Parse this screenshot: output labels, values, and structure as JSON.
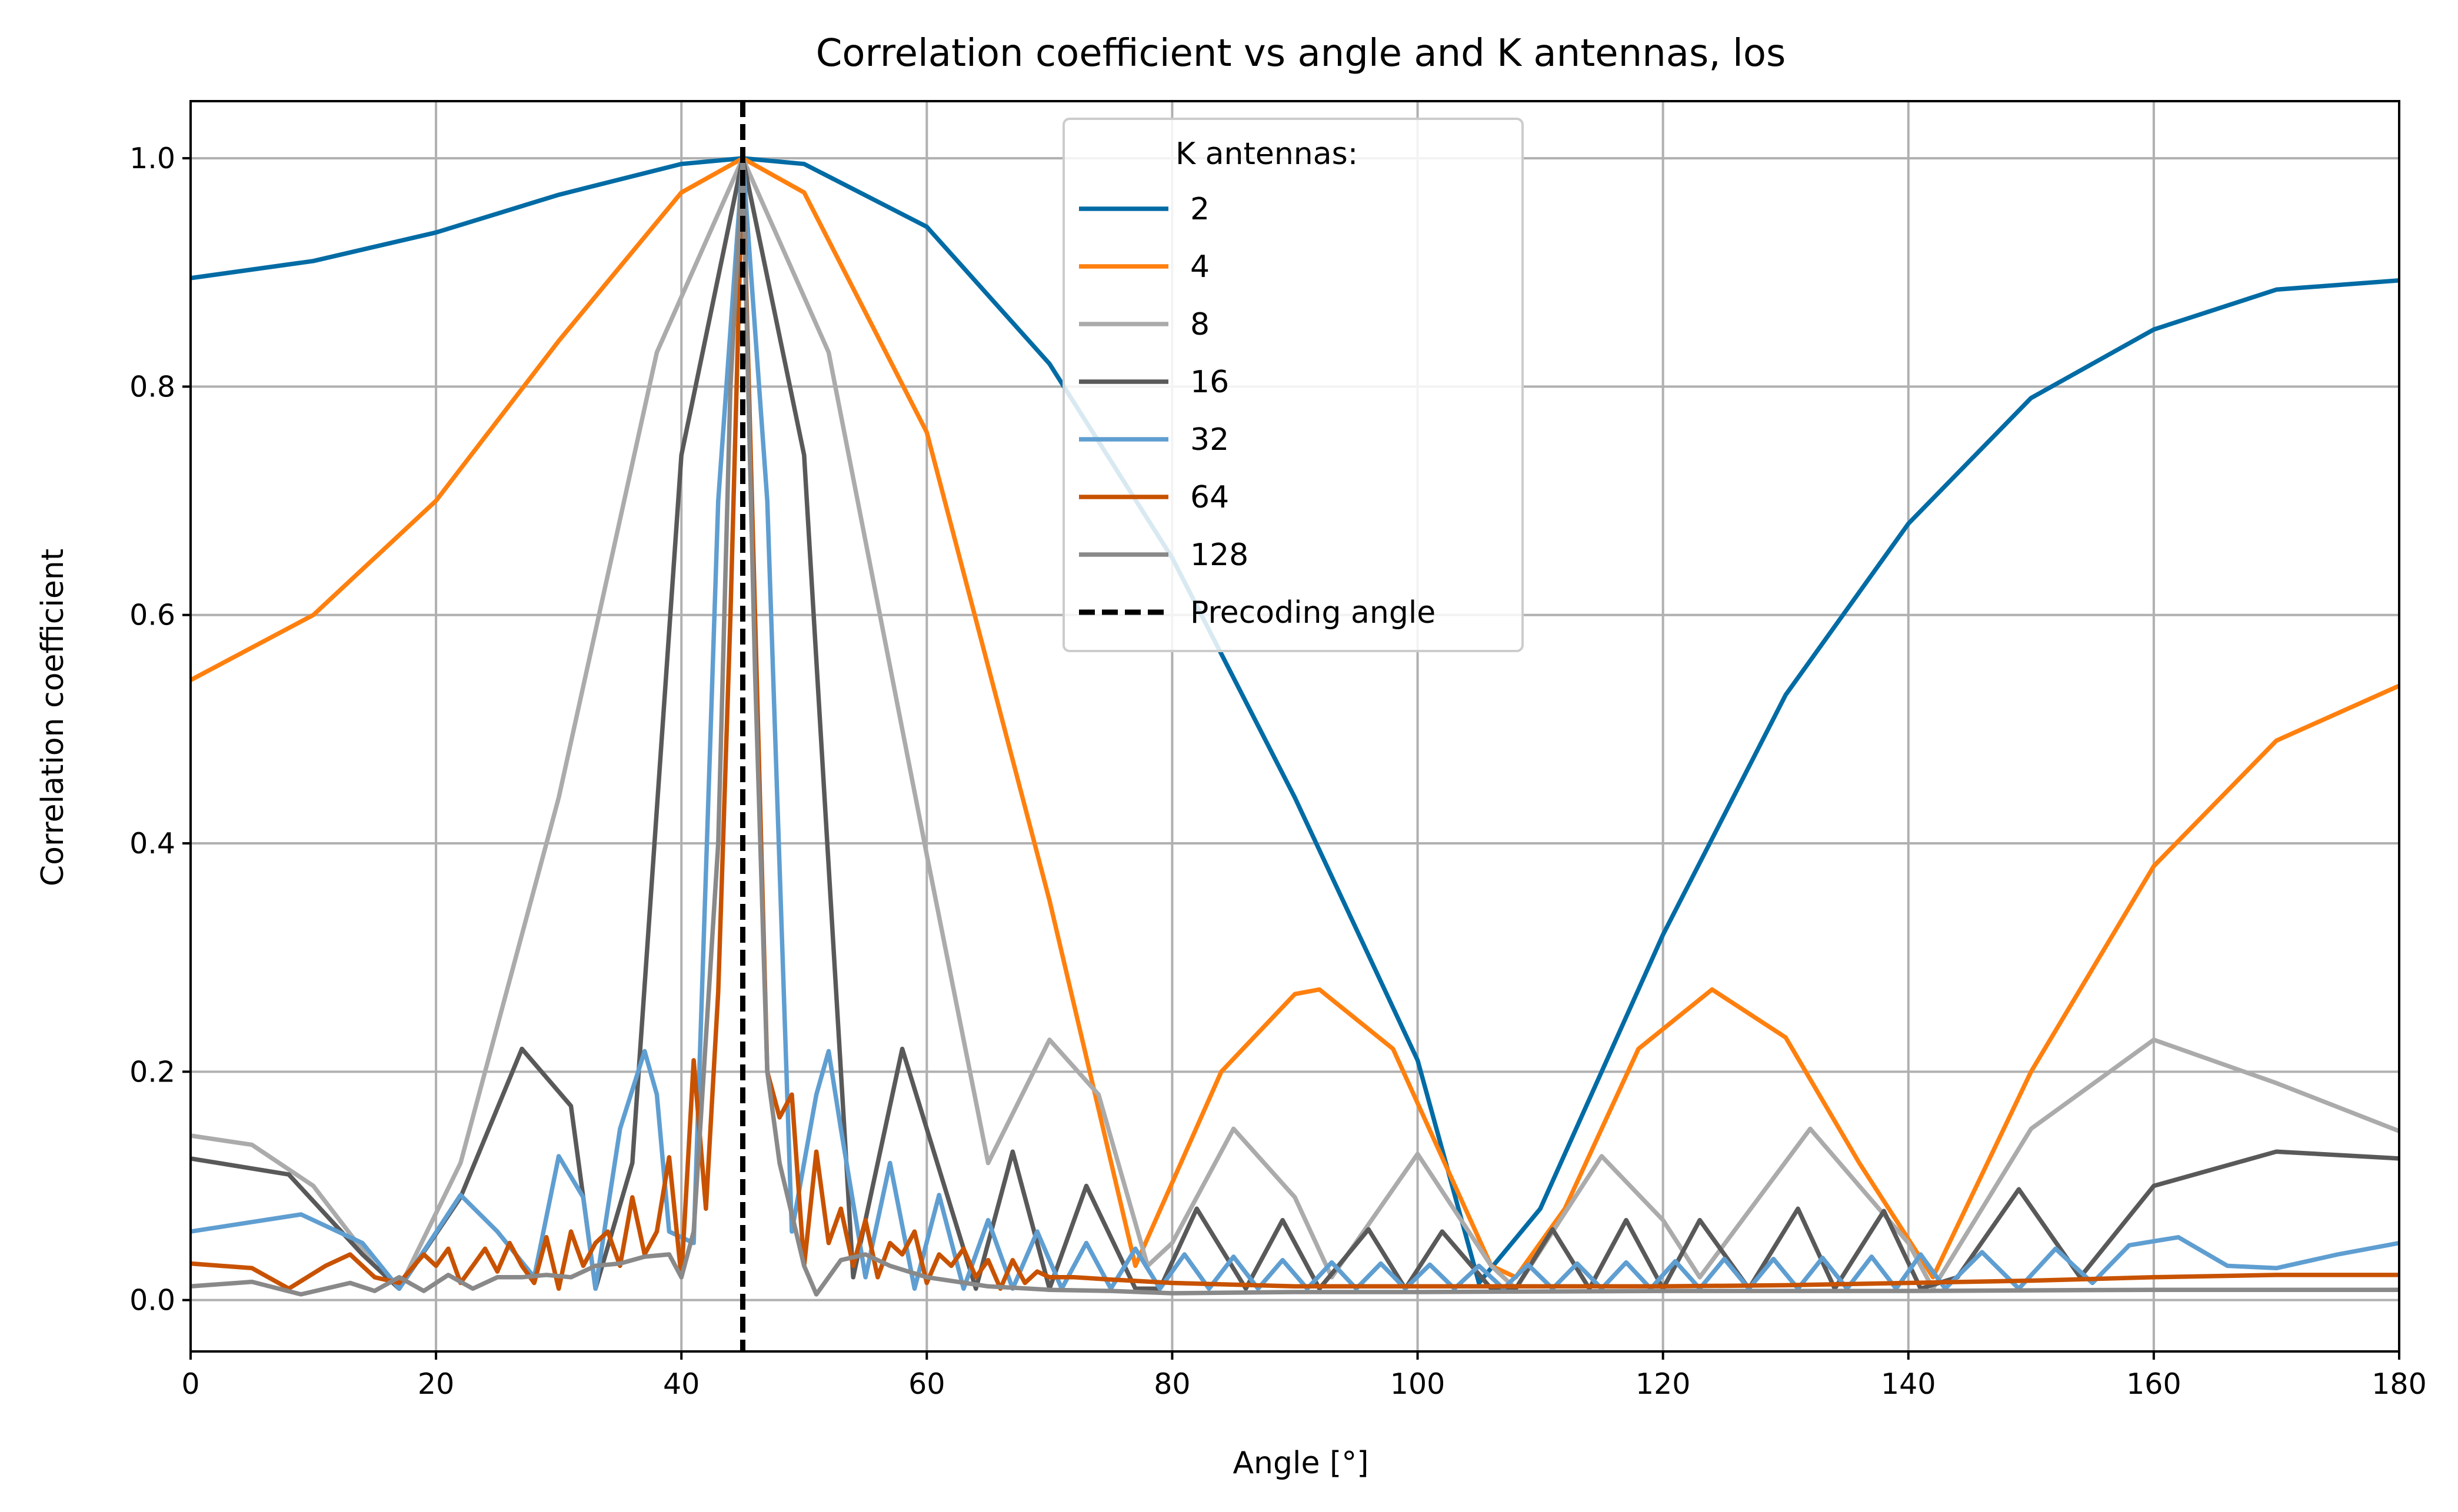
{
  "chart_data": {
    "type": "line",
    "title": "Correlation coefficient vs angle and K antennas, los",
    "xlabel": "Angle [°]",
    "ylabel": "Correlation coefficient",
    "xlim": [
      0,
      180
    ],
    "ylim": [
      -0.045,
      1.05
    ],
    "xticks": [
      0,
      20,
      40,
      60,
      80,
      100,
      120,
      140,
      160,
      180
    ],
    "yticks": [
      0.0,
      0.2,
      0.4,
      0.6,
      0.8,
      1.0
    ],
    "xtick_labels": [
      "0",
      "20",
      "40",
      "60",
      "80",
      "100",
      "120",
      "140",
      "160",
      "180"
    ],
    "ytick_labels": [
      "0.0",
      "0.2",
      "0.4",
      "0.6",
      "0.8",
      "1.0"
    ],
    "grid": true,
    "legend": {
      "title": "K antennas:",
      "placement": "top-center",
      "entries": [
        "2",
        "4",
        "8",
        "16",
        "32",
        "64",
        "128",
        "Precoding angle"
      ]
    },
    "precoding_angle": 45,
    "series": [
      {
        "name": "2",
        "color": "#006ba4",
        "x": [
          0,
          10,
          20,
          30,
          40,
          45,
          50,
          60,
          70,
          80,
          90,
          100,
          105,
          110,
          120,
          130,
          140,
          150,
          160,
          170,
          180
        ],
        "y": [
          0.895,
          0.91,
          0.935,
          0.968,
          0.995,
          1.0,
          0.995,
          0.94,
          0.82,
          0.65,
          0.44,
          0.21,
          0.015,
          0.08,
          0.32,
          0.53,
          0.68,
          0.79,
          0.85,
          0.885,
          0.893
        ]
      },
      {
        "name": "4",
        "color": "#ff800e",
        "x": [
          0,
          10,
          20,
          30,
          40,
          45,
          50,
          60,
          70,
          77,
          84,
          90,
          92,
          98,
          106,
          108,
          112,
          118,
          124,
          130,
          136,
          142,
          150,
          160,
          170,
          180
        ],
        "y": [
          0.543,
          0.6,
          0.7,
          0.84,
          0.97,
          1.0,
          0.97,
          0.76,
          0.35,
          0.03,
          0.2,
          0.268,
          0.272,
          0.22,
          0.03,
          0.02,
          0.08,
          0.22,
          0.272,
          0.23,
          0.12,
          0.02,
          0.2,
          0.38,
          0.49,
          0.538
        ]
      },
      {
        "name": "8",
        "color": "#ababab",
        "x": [
          0,
          5,
          10,
          15,
          17,
          22,
          30,
          38,
          45,
          52,
          60,
          65,
          70,
          74,
          78,
          80,
          85,
          90,
          93,
          100,
          106,
          108,
          115,
          120,
          123,
          132,
          140,
          142,
          150,
          160,
          170,
          180
        ],
        "y": [
          0.144,
          0.136,
          0.1,
          0.03,
          0.01,
          0.12,
          0.44,
          0.83,
          1.0,
          0.83,
          0.39,
          0.12,
          0.228,
          0.18,
          0.03,
          0.05,
          0.15,
          0.09,
          0.02,
          0.128,
          0.03,
          0.01,
          0.126,
          0.07,
          0.02,
          0.15,
          0.05,
          0.01,
          0.15,
          0.228,
          0.19,
          0.148
        ]
      },
      {
        "name": "16",
        "color": "#595959",
        "x": [
          0,
          8,
          14,
          17,
          22,
          27,
          31,
          33,
          36,
          40,
          45,
          50,
          54,
          58,
          62,
          64,
          67,
          70,
          73,
          77,
          79,
          82,
          86,
          89,
          92,
          96,
          99,
          102,
          106,
          108,
          111,
          114,
          117,
          120,
          123,
          127,
          131,
          134,
          138,
          141,
          144,
          149,
          154,
          160,
          170,
          180
        ],
        "y": [
          0.124,
          0.11,
          0.04,
          0.01,
          0.09,
          0.22,
          0.17,
          0.01,
          0.12,
          0.74,
          1.0,
          0.74,
          0.02,
          0.22,
          0.08,
          0.01,
          0.13,
          0.01,
          0.1,
          0.01,
          0.01,
          0.08,
          0.01,
          0.07,
          0.01,
          0.062,
          0.01,
          0.06,
          0.01,
          0.01,
          0.062,
          0.01,
          0.07,
          0.01,
          0.07,
          0.01,
          0.08,
          0.01,
          0.078,
          0.01,
          0.02,
          0.097,
          0.02,
          0.1,
          0.13,
          0.124
        ]
      },
      {
        "name": "32",
        "color": "#5f9ed1",
        "x": [
          0,
          9,
          14,
          17,
          22,
          25,
          28,
          30,
          32,
          33,
          35,
          37,
          38,
          39,
          41,
          43,
          45,
          47,
          49,
          51,
          52,
          53,
          55,
          57,
          59,
          61,
          63,
          65,
          67,
          69,
          71,
          73,
          75,
          77,
          79,
          81,
          83,
          85,
          87,
          89,
          91,
          93,
          95,
          97,
          99,
          101,
          103,
          105,
          107,
          109,
          111,
          113,
          115,
          117,
          119,
          121,
          123,
          125,
          127,
          129,
          131,
          133,
          135,
          137,
          139,
          141,
          143,
          146,
          149,
          152,
          155,
          158,
          162,
          166,
          170,
          175,
          180
        ],
        "y": [
          0.06,
          0.075,
          0.05,
          0.01,
          0.092,
          0.06,
          0.02,
          0.126,
          0.09,
          0.01,
          0.15,
          0.218,
          0.18,
          0.06,
          0.05,
          0.7,
          1.0,
          0.7,
          0.06,
          0.18,
          0.218,
          0.15,
          0.02,
          0.12,
          0.01,
          0.092,
          0.01,
          0.07,
          0.01,
          0.06,
          0.01,
          0.05,
          0.01,
          0.045,
          0.01,
          0.04,
          0.01,
          0.038,
          0.01,
          0.035,
          0.01,
          0.033,
          0.01,
          0.032,
          0.01,
          0.031,
          0.01,
          0.03,
          0.01,
          0.031,
          0.01,
          0.032,
          0.01,
          0.033,
          0.01,
          0.034,
          0.01,
          0.036,
          0.01,
          0.036,
          0.01,
          0.037,
          0.01,
          0.038,
          0.01,
          0.04,
          0.01,
          0.042,
          0.01,
          0.045,
          0.015,
          0.048,
          0.055,
          0.03,
          0.028,
          0.04,
          0.05
        ]
      },
      {
        "name": "64",
        "color": "#c85200",
        "x": [
          0,
          5,
          8,
          11,
          13,
          15,
          17,
          19,
          20,
          21,
          22,
          23,
          24,
          25,
          26,
          27,
          28,
          29,
          30,
          31,
          32,
          33,
          34,
          35,
          36,
          37,
          38,
          39,
          40,
          41,
          42,
          43,
          44,
          45,
          46,
          47,
          48,
          49,
          50,
          51,
          52,
          53,
          54,
          55,
          56,
          57,
          58,
          59,
          60,
          61,
          62,
          63,
          64,
          65,
          66,
          67,
          68,
          69,
          70,
          72,
          75,
          80,
          90,
          100,
          110,
          120,
          130,
          140,
          150,
          160,
          170,
          180
        ],
        "y": [
          0.032,
          0.028,
          0.01,
          0.03,
          0.04,
          0.02,
          0.015,
          0.04,
          0.03,
          0.045,
          0.015,
          0.03,
          0.045,
          0.025,
          0.05,
          0.03,
          0.015,
          0.055,
          0.01,
          0.06,
          0.03,
          0.05,
          0.06,
          0.03,
          0.09,
          0.04,
          0.06,
          0.125,
          0.02,
          0.21,
          0.08,
          0.27,
          0.6,
          1.0,
          0.6,
          0.2,
          0.16,
          0.18,
          0.03,
          0.13,
          0.05,
          0.08,
          0.03,
          0.07,
          0.02,
          0.05,
          0.04,
          0.06,
          0.015,
          0.04,
          0.03,
          0.045,
          0.02,
          0.035,
          0.01,
          0.035,
          0.015,
          0.025,
          0.02,
          0.02,
          0.018,
          0.015,
          0.012,
          0.012,
          0.012,
          0.012,
          0.013,
          0.015,
          0.017,
          0.02,
          0.022,
          0.022
        ]
      },
      {
        "name": "128",
        "color": "#898989",
        "x": [
          0,
          5,
          9,
          13,
          15,
          17,
          19,
          21,
          23,
          25,
          27,
          29,
          31,
          33,
          35,
          37,
          39,
          40,
          41,
          43,
          44,
          45,
          46,
          47,
          48,
          50,
          51,
          53,
          55,
          57,
          60,
          65,
          70,
          75,
          80,
          90,
          100,
          120,
          140,
          160,
          180
        ],
        "y": [
          0.012,
          0.016,
          0.005,
          0.015,
          0.008,
          0.02,
          0.008,
          0.022,
          0.01,
          0.02,
          0.02,
          0.022,
          0.02,
          0.03,
          0.032,
          0.038,
          0.04,
          0.02,
          0.06,
          0.4,
          0.8,
          1.0,
          0.55,
          0.2,
          0.12,
          0.03,
          0.005,
          0.035,
          0.04,
          0.03,
          0.02,
          0.012,
          0.009,
          0.008,
          0.006,
          0.007,
          0.007,
          0.008,
          0.008,
          0.009,
          0.009
        ]
      }
    ]
  }
}
